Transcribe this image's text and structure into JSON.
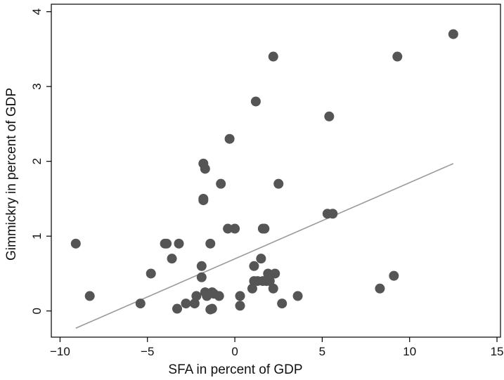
{
  "chart_data": {
    "type": "scatter",
    "title": "",
    "xlabel": "SFA in percent of GDP",
    "ylabel": "Gimmickry in percent of GDP",
    "xlim": [
      -10.5,
      15.2
    ],
    "ylim": [
      -0.35,
      4.1
    ],
    "xticks": [
      -10,
      -5,
      0,
      5,
      10,
      15
    ],
    "yticks": [
      0,
      1,
      2,
      3,
      4
    ],
    "grid": false,
    "legend": "none",
    "colors": {
      "points": "#555555",
      "fit_line": "#9a9a9a",
      "frame": "#000000"
    },
    "series": [
      {
        "x": [
          -9.1,
          -8.3,
          -5.4,
          -4.8,
          -4.0,
          -3.9,
          -3.6,
          -3.3,
          -3.2,
          -2.8,
          -2.3,
          -2.2,
          -1.9,
          -1.9,
          -1.8,
          -1.8,
          -1.8,
          -1.7,
          -1.7,
          -1.6,
          -1.4,
          -1.4,
          -1.3,
          -1.3,
          -1.2,
          -0.9,
          -0.8,
          -0.4,
          -0.3,
          0.0,
          0.3,
          0.3,
          1.0,
          1.1,
          1.1,
          1.2,
          1.3,
          1.5,
          1.6,
          1.6,
          1.7,
          1.8,
          1.9,
          2.0,
          2.2,
          2.2,
          2.3,
          2.5,
          2.7,
          3.6,
          5.3,
          5.4,
          5.6,
          8.3,
          9.1,
          9.3,
          12.5
        ],
        "y": [
          0.9,
          0.2,
          0.1,
          0.5,
          0.9,
          0.9,
          0.7,
          0.03,
          0.9,
          0.1,
          0.1,
          0.2,
          0.45,
          0.6,
          1.5,
          1.48,
          1.97,
          1.9,
          0.25,
          0.2,
          0.02,
          0.9,
          0.03,
          0.25,
          0.23,
          0.2,
          1.7,
          1.1,
          2.3,
          1.1,
          0.07,
          0.2,
          0.3,
          0.4,
          0.6,
          2.8,
          0.4,
          0.7,
          0.4,
          1.1,
          1.1,
          0.4,
          0.5,
          0.4,
          3.4,
          0.3,
          0.5,
          1.7,
          0.1,
          0.2,
          1.3,
          2.6,
          1.3,
          0.3,
          0.47,
          3.4,
          3.7
        ]
      }
    ],
    "fit_line": {
      "x": [
        -9.1,
        12.5
      ],
      "y": [
        -0.23,
        1.97
      ]
    }
  }
}
